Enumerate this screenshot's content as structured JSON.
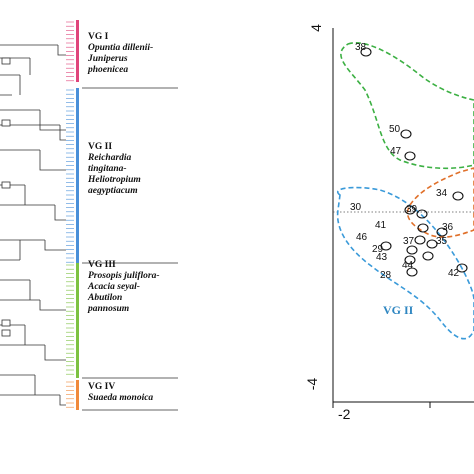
{
  "dendrogram": {
    "groups": [
      {
        "id": "VG I",
        "species": [
          "Opuntia dillenii-",
          "Juniperus",
          "phoenicea"
        ],
        "color": "#e0457b"
      },
      {
        "id": "VG II",
        "species": [
          "Reichardia",
          "tingitana-",
          "Heliotropium",
          "aegyptiacum"
        ],
        "color": "#4a90d9"
      },
      {
        "id": "VG III",
        "species": [
          "Prosopis juliflora-",
          "Acacia seyal-",
          "Abutilon",
          "pannosum"
        ],
        "color": "#7dc242"
      },
      {
        "id": "VG IV",
        "species": [
          "Suaeda monoica"
        ],
        "color": "#f08a3c"
      }
    ]
  },
  "ordination": {
    "y_top_label": "4",
    "y_bottom_label": "-4",
    "x_left_label": "-2",
    "group_label": "VG II",
    "group_label_color": "#2e86c1",
    "points": [
      {
        "label": "38"
      },
      {
        "label": "50"
      },
      {
        "label": "47"
      },
      {
        "label": "34"
      },
      {
        "label": "30"
      },
      {
        "label": "39"
      },
      {
        "label": "41"
      },
      {
        "label": "36"
      },
      {
        "label": "46"
      },
      {
        "label": "37"
      },
      {
        "label": "35"
      },
      {
        "label": "29"
      },
      {
        "label": "43"
      },
      {
        "label": "44"
      },
      {
        "label": "28"
      },
      {
        "label": "42"
      }
    ],
    "hull_colors": {
      "vg1": "#3cb043",
      "vg2": "#3a9ad9",
      "vg_orange": "#e0702a"
    }
  }
}
